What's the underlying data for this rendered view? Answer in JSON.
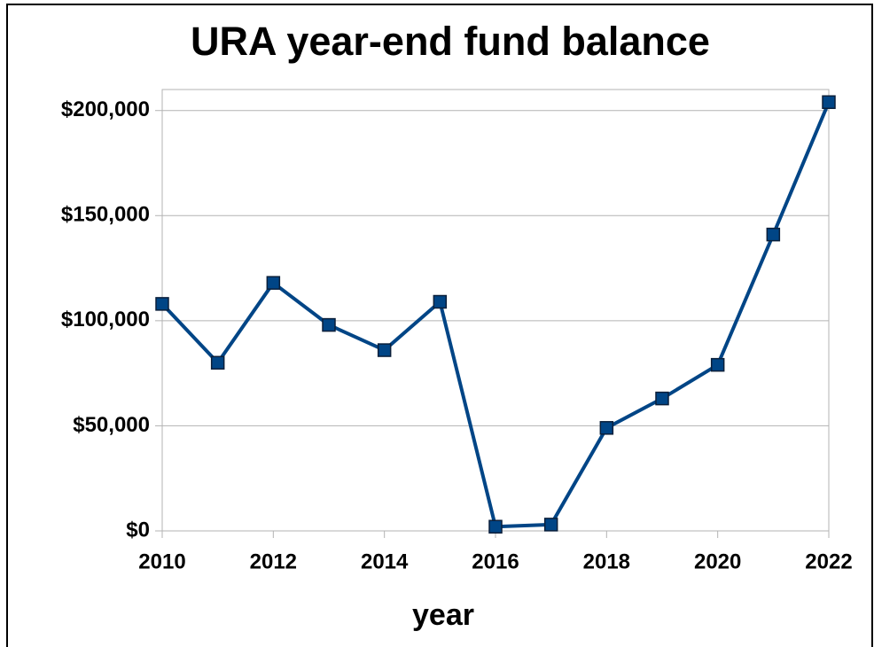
{
  "chart_data": {
    "type": "line",
    "title": "URA year-end fund balance",
    "xlabel": "year",
    "x": [
      2010,
      2011,
      2012,
      2013,
      2014,
      2015,
      2016,
      2017,
      2018,
      2019,
      2020,
      2021,
      2022
    ],
    "series": [
      {
        "name": "fund balance",
        "color": "#004586",
        "values": [
          108000,
          80000,
          118000,
          98000,
          86000,
          109000,
          2000,
          3000,
          49000,
          63000,
          79000,
          141000,
          204000
        ]
      }
    ],
    "xlim": [
      2010,
      2022
    ],
    "xticks": [
      2010,
      2012,
      2014,
      2016,
      2018,
      2020,
      2022
    ],
    "ylim": [
      0,
      210000
    ],
    "yticks": [
      {
        "value": 0,
        "label": "$0"
      },
      {
        "value": 50000,
        "label": "$50,000"
      },
      {
        "value": 100000,
        "label": "$100,000"
      },
      {
        "value": 150000,
        "label": "$150,000"
      },
      {
        "value": 200000,
        "label": "$200,000"
      }
    ],
    "grid": true
  }
}
